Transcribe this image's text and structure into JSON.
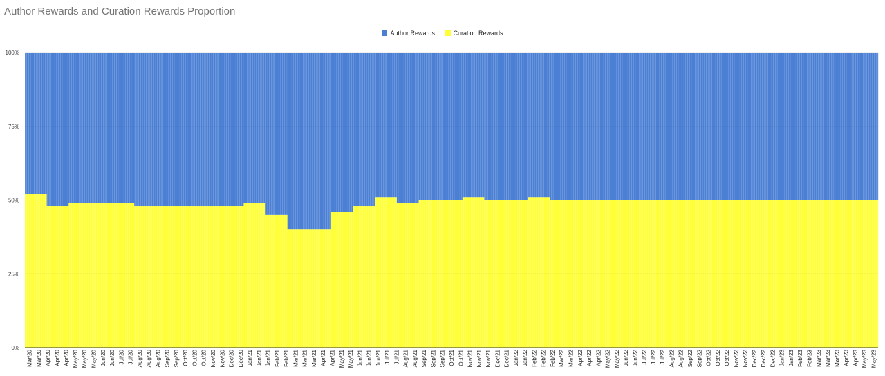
{
  "chart_data": {
    "type": "bar",
    "stacked": "percent",
    "title": "Author Rewards and Curation Rewards Proportion",
    "xlabel": "",
    "ylabel": "",
    "ylim": [
      0,
      100
    ],
    "y_ticks": [
      "0%",
      "25%",
      "50%",
      "75%",
      "100%"
    ],
    "grid": true,
    "legend_position": "top-center",
    "categories": [
      "Mar/20",
      "Apr/20",
      "May/20",
      "Jun/20",
      "Jul/20",
      "Aug/20",
      "Sep/20",
      "Oct/20",
      "Nov/20",
      "Dec/20",
      "Jan/21",
      "Feb/21",
      "Mar/21",
      "Apr/21",
      "May/21",
      "Jun/21",
      "Jul/21",
      "Aug/21",
      "Sep/21",
      "Oct/21",
      "Nov/21",
      "Dec/21",
      "Jan/22",
      "Feb/22",
      "Mar/22",
      "Apr/22",
      "May/22",
      "Jun/22",
      "Jul/22",
      "Aug/22",
      "Sep/22",
      "Oct/22",
      "Nov/22",
      "Dec/22",
      "Jan/23",
      "Feb/23",
      "Mar/23",
      "Apr/23",
      "May/23"
    ],
    "x_tick_labels": [
      "Mar/20",
      "Mar/20",
      "Apr/20",
      "Apr/20",
      "Apr/20",
      "May/20",
      "May/20",
      "May/20",
      "Jun/20",
      "Jun/20",
      "Jul/20",
      "Jul/20",
      "Aug/20",
      "Aug/20",
      "Aug/20",
      "Sep/20",
      "Sep/20",
      "Oct/20",
      "Oct/20",
      "Oct/20",
      "Nov/20",
      "Nov/20",
      "Dec/20",
      "Dec/20",
      "Jan/21",
      "Jan/21",
      "Jan/21",
      "Feb/21",
      "Feb/21",
      "Mar/21",
      "Mar/21",
      "Mar/21",
      "Apr/21",
      "Apr/21",
      "May/21",
      "May/21",
      "Jun/21",
      "Jun/21",
      "Jun/21",
      "Jul/21",
      "Jul/21",
      "Aug/21",
      "Aug/21",
      "Sep/21",
      "Sep/21",
      "Sep/21",
      "Oct/21",
      "Oct/21",
      "Nov/21",
      "Nov/21",
      "Nov/21",
      "Dec/21",
      "Dec/21",
      "Jan/22",
      "Jan/22",
      "Feb/22",
      "Feb/22",
      "Feb/22",
      "Mar/22",
      "Mar/22",
      "Apr/22",
      "Apr/22",
      "Apr/22",
      "May/22",
      "May/22",
      "Jun/22",
      "Jun/22",
      "Jul/22",
      "Jul/22",
      "Jul/22",
      "Aug/22",
      "Aug/22",
      "Sep/22",
      "Sep/22",
      "Oct/22",
      "Oct/22",
      "Oct/22",
      "Nov/22",
      "Nov/22",
      "Dec/22",
      "Dec/22",
      "Dec/22",
      "Jan/23",
      "Jan/23",
      "Feb/23",
      "Feb/23",
      "Mar/23",
      "Mar/23",
      "Mar/23",
      "Apr/23",
      "Apr/23",
      "May/23",
      "May/23"
    ],
    "series": [
      {
        "name": "Author Rewards",
        "color": "#4a7fd4",
        "values": [
          48,
          52,
          51,
          51,
          51,
          52,
          52,
          52,
          52,
          52,
          51,
          55,
          60,
          60,
          54,
          52,
          49,
          51,
          50,
          50,
          49,
          50,
          50,
          49,
          50,
          50,
          50,
          50,
          50,
          50,
          50,
          50,
          50,
          50,
          50,
          50,
          50,
          50,
          50
        ]
      },
      {
        "name": "Curation Rewards",
        "color": "#ffff38",
        "values": [
          52,
          48,
          49,
          49,
          49,
          48,
          48,
          48,
          48,
          48,
          49,
          45,
          40,
          40,
          46,
          48,
          51,
          49,
          50,
          50,
          51,
          50,
          50,
          51,
          50,
          50,
          50,
          50,
          50,
          50,
          50,
          50,
          50,
          50,
          50,
          50,
          50,
          50,
          50
        ]
      }
    ]
  }
}
